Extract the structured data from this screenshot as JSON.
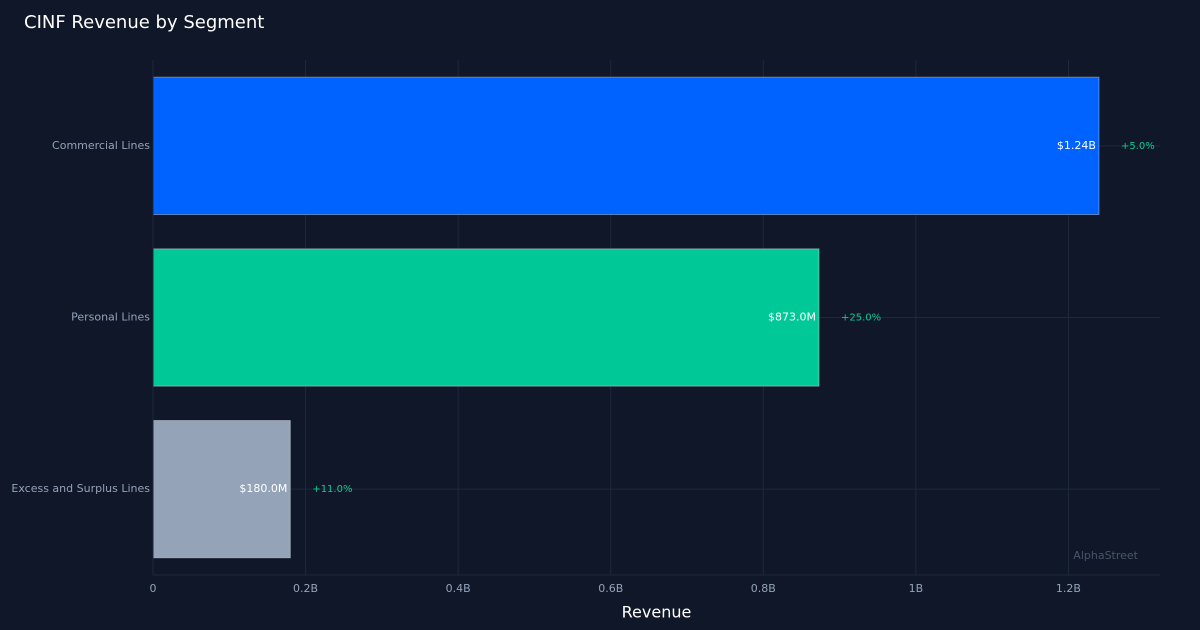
{
  "page": {
    "title": "CINF Revenue by Segment",
    "watermark": "AlphaStreet"
  },
  "colors": {
    "background": "#0f1729",
    "grid": "#1e293b",
    "tick_text": "#94a3b8",
    "growth_text": "#10c994",
    "value_text": "#ffffff"
  },
  "chart_data": {
    "type": "bar",
    "orientation": "horizontal",
    "title": "CINF Revenue by Segment",
    "xlabel": "Revenue",
    "ylabel": "",
    "xlim": [
      0,
      1320000000
    ],
    "xticks": [
      0,
      200000000,
      400000000,
      600000000,
      800000000,
      1000000000,
      1200000000
    ],
    "xtick_labels": [
      "0",
      "0.2B",
      "0.4B",
      "0.6B",
      "0.8B",
      "1B",
      "1.2B"
    ],
    "grid": true,
    "categories": [
      "Commercial Lines",
      "Personal Lines",
      "Excess and Surplus Lines"
    ],
    "values": [
      1240000000,
      873000000,
      180000000
    ],
    "value_labels": [
      "$1.24B",
      "$873.0M",
      "$180.0M"
    ],
    "growth_labels": [
      "+5.0%",
      "+25.0%",
      "+11.0%"
    ],
    "bar_colors": [
      "#0062ff",
      "#00c896",
      "#94a3b8"
    ]
  }
}
